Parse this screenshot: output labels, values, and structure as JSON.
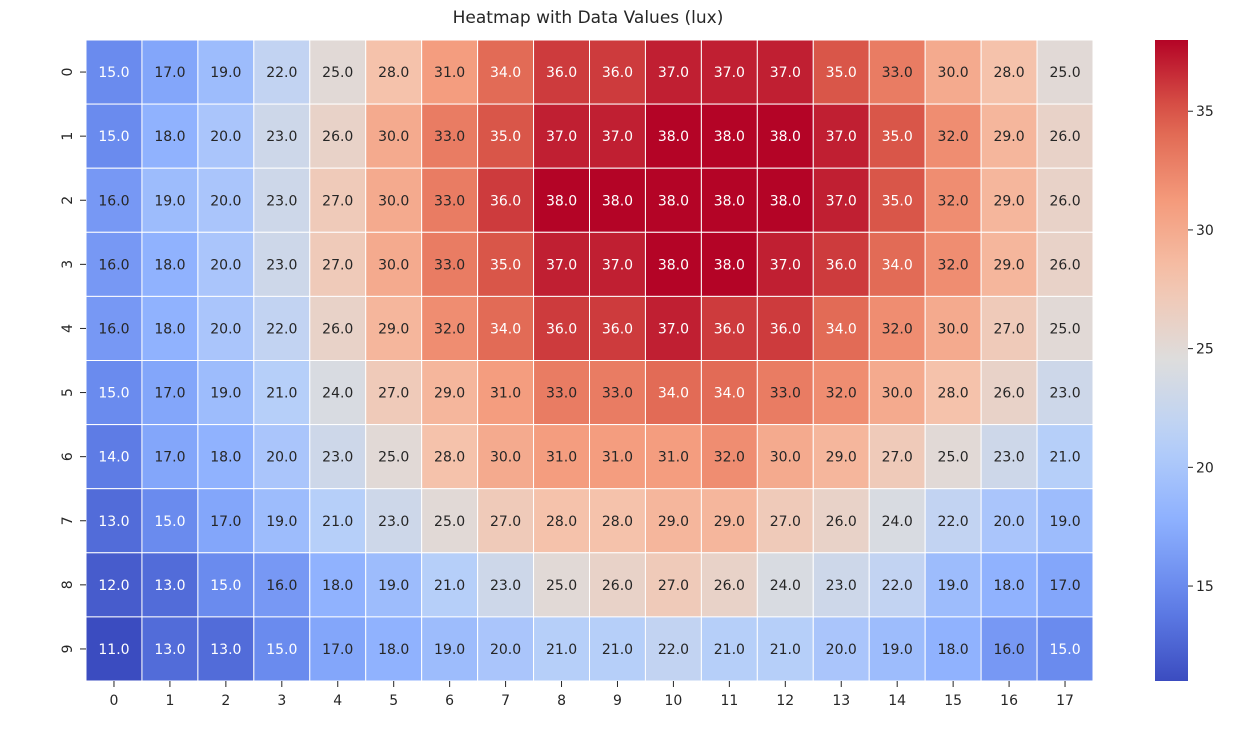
{
  "chart_data": {
    "type": "heatmap",
    "title": "Heatmap with Data Values (lux)",
    "xlabel": "",
    "ylabel": "",
    "x_tick_labels": [
      "0",
      "1",
      "2",
      "3",
      "4",
      "5",
      "6",
      "7",
      "8",
      "9",
      "10",
      "11",
      "12",
      "13",
      "14",
      "15",
      "16",
      "17"
    ],
    "y_tick_labels": [
      "0",
      "1",
      "2",
      "3",
      "4",
      "5",
      "6",
      "7",
      "8",
      "9"
    ],
    "values": [
      [
        15,
        17,
        19,
        22,
        25,
        28,
        31,
        34,
        36,
        36,
        37,
        37,
        37,
        35,
        33,
        30,
        28,
        25
      ],
      [
        15,
        18,
        20,
        23,
        26,
        30,
        33,
        35,
        37,
        37,
        38,
        38,
        38,
        37,
        35,
        32,
        29,
        26
      ],
      [
        16,
        19,
        20,
        23,
        27,
        30,
        33,
        36,
        38,
        38,
        38,
        38,
        38,
        37,
        35,
        32,
        29,
        26
      ],
      [
        16,
        18,
        20,
        23,
        27,
        30,
        33,
        35,
        37,
        37,
        38,
        38,
        37,
        36,
        34,
        32,
        29,
        26
      ],
      [
        16,
        18,
        20,
        22,
        26,
        29,
        32,
        34,
        36,
        36,
        37,
        36,
        36,
        34,
        32,
        30,
        27,
        25
      ],
      [
        15,
        17,
        19,
        21,
        24,
        27,
        29,
        31,
        33,
        33,
        34,
        34,
        33,
        32,
        30,
        28,
        26,
        23
      ],
      [
        14,
        17,
        18,
        20,
        23,
        25,
        28,
        30,
        31,
        31,
        31,
        32,
        30,
        29,
        27,
        25,
        23,
        21
      ],
      [
        13,
        15,
        17,
        19,
        21,
        23,
        25,
        27,
        28,
        28,
        29,
        29,
        27,
        26,
        24,
        22,
        20,
        19
      ],
      [
        12,
        13,
        15,
        16,
        18,
        19,
        21,
        23,
        25,
        26,
        27,
        26,
        24,
        23,
        22,
        19,
        18,
        17
      ],
      [
        11,
        13,
        13,
        15,
        17,
        18,
        19,
        20,
        21,
        21,
        22,
        21,
        21,
        20,
        19,
        18,
        16,
        15
      ]
    ],
    "value_format": "1 decimal",
    "colormap": "coolwarm",
    "color_range": [
      11,
      38
    ],
    "colorbar_ticks": [
      "15",
      "20",
      "25",
      "30",
      "35"
    ],
    "colorbar_tick_values": [
      15,
      20,
      25,
      30,
      35
    ],
    "cell_border_color": "#ffffff",
    "legend_placement": "right (colorbar)"
  }
}
